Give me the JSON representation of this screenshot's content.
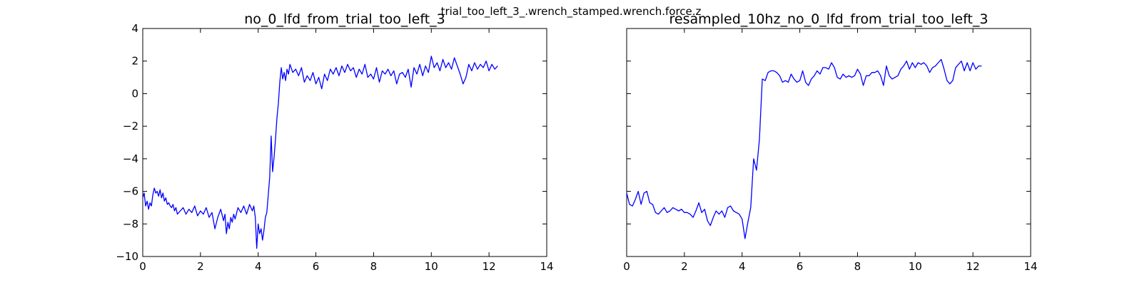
{
  "suptitle": "trial_too_left_3_.wrench_stamped.wrench.force.z",
  "line_color": "#0000ff",
  "chart_data": [
    {
      "type": "line",
      "title": "no_0_lfd_from_trial_too_left_3",
      "xlim": [
        0,
        14
      ],
      "ylim": [
        -10,
        4
      ],
      "xticks": [
        "0",
        "2",
        "4",
        "6",
        "8",
        "10",
        "12",
        "14"
      ],
      "yticks": [
        "4",
        "2",
        "0",
        "−2",
        "−4",
        "−6",
        "−8",
        "−10"
      ],
      "show_yticklabels": true,
      "grid": false,
      "series": [
        {
          "x": [
            0,
            0.05,
            0.1,
            0.15,
            0.2,
            0.25,
            0.3,
            0.35,
            0.4,
            0.45,
            0.5,
            0.55,
            0.6,
            0.65,
            0.7,
            0.75,
            0.8,
            0.85,
            0.9,
            0.95,
            1.0,
            1.05,
            1.1,
            1.15,
            1.2,
            1.3,
            1.4,
            1.5,
            1.6,
            1.7,
            1.8,
            1.9,
            2.0,
            2.1,
            2.2,
            2.3,
            2.4,
            2.5,
            2.6,
            2.7,
            2.8,
            2.85,
            2.9,
            2.95,
            3.0,
            3.05,
            3.1,
            3.15,
            3.2,
            3.3,
            3.4,
            3.5,
            3.6,
            3.7,
            3.8,
            3.85,
            3.9,
            3.95,
            4.0,
            4.05,
            4.1,
            4.15,
            4.2,
            4.25,
            4.3,
            4.35,
            4.4,
            4.45,
            4.5,
            4.55,
            4.6,
            4.65,
            4.7,
            4.75,
            4.8,
            4.85,
            4.9,
            4.95,
            5.0,
            5.05,
            5.1,
            5.2,
            5.3,
            5.4,
            5.5,
            5.6,
            5.7,
            5.8,
            5.9,
            6.0,
            6.1,
            6.2,
            6.3,
            6.4,
            6.5,
            6.6,
            6.7,
            6.8,
            6.9,
            7.0,
            7.1,
            7.2,
            7.3,
            7.4,
            7.5,
            7.6,
            7.7,
            7.8,
            7.9,
            8.0,
            8.1,
            8.2,
            8.3,
            8.4,
            8.5,
            8.6,
            8.7,
            8.8,
            8.9,
            9.0,
            9.1,
            9.2,
            9.3,
            9.4,
            9.5,
            9.6,
            9.7,
            9.8,
            9.9,
            10.0,
            10.1,
            10.2,
            10.3,
            10.4,
            10.5,
            10.6,
            10.7,
            10.8,
            10.9,
            11.0,
            11.1,
            11.2,
            11.3,
            11.4,
            11.5,
            11.6,
            11.7,
            11.8,
            11.9,
            12.0,
            12.1,
            12.2,
            12.3
          ],
          "y": [
            -6.4,
            -6.1,
            -6.9,
            -6.6,
            -7.1,
            -6.7,
            -6.9,
            -6.2,
            -5.8,
            -6.1,
            -6.0,
            -6.3,
            -5.9,
            -6.4,
            -6.1,
            -6.6,
            -6.4,
            -6.8,
            -6.7,
            -6.9,
            -7.0,
            -6.8,
            -7.2,
            -7.0,
            -7.4,
            -7.2,
            -7.0,
            -7.4,
            -7.1,
            -7.3,
            -6.9,
            -7.5,
            -7.2,
            -7.4,
            -7.0,
            -7.6,
            -7.3,
            -8.3,
            -7.6,
            -7.1,
            -7.8,
            -7.4,
            -8.6,
            -7.9,
            -8.3,
            -7.6,
            -7.9,
            -7.4,
            -7.7,
            -7.0,
            -7.3,
            -6.9,
            -7.4,
            -6.8,
            -7.2,
            -6.9,
            -7.6,
            -9.5,
            -8.0,
            -8.6,
            -8.3,
            -9.0,
            -8.4,
            -7.6,
            -7.3,
            -6.2,
            -5.1,
            -2.6,
            -4.8,
            -3.9,
            -2.8,
            -1.5,
            -0.6,
            0.7,
            1.6,
            0.9,
            1.3,
            0.8,
            1.5,
            1.2,
            1.8,
            1.3,
            1.5,
            1.1,
            1.6,
            0.7,
            1.1,
            0.8,
            1.3,
            0.6,
            1.0,
            0.3,
            1.2,
            0.8,
            1.5,
            1.2,
            1.6,
            1.1,
            1.7,
            1.3,
            1.8,
            1.4,
            1.6,
            1.0,
            1.5,
            1.2,
            1.8,
            1.0,
            1.2,
            0.9,
            1.6,
            0.7,
            1.4,
            1.2,
            1.5,
            1.1,
            1.4,
            0.6,
            1.2,
            1.3,
            1.0,
            1.5,
            0.4,
            1.6,
            1.2,
            1.8,
            1.1,
            1.7,
            1.3,
            2.3,
            1.6,
            1.9,
            1.4,
            2.1,
            1.6,
            1.9,
            1.5,
            2.2,
            1.7,
            1.2,
            0.6,
            1.0,
            1.8,
            1.4,
            1.9,
            1.5,
            1.8,
            1.6,
            2.0,
            1.4,
            1.8,
            1.5,
            1.7
          ]
        }
      ]
    },
    {
      "type": "line",
      "title": "resampled_10hz_no_0_lfd_from_trial_too_left_3",
      "xlim": [
        0,
        14
      ],
      "ylim": [
        -10,
        4
      ],
      "xticks": [
        "0",
        "2",
        "4",
        "6",
        "8",
        "10",
        "12",
        "14"
      ],
      "show_yticklabels": false,
      "grid": false,
      "series": [
        {
          "x": [
            0,
            0.1,
            0.2,
            0.3,
            0.4,
            0.5,
            0.6,
            0.7,
            0.8,
            0.9,
            1.0,
            1.1,
            1.2,
            1.3,
            1.4,
            1.5,
            1.6,
            1.7,
            1.8,
            1.9,
            2.0,
            2.1,
            2.2,
            2.3,
            2.4,
            2.5,
            2.6,
            2.7,
            2.8,
            2.9,
            3.0,
            3.1,
            3.2,
            3.3,
            3.4,
            3.5,
            3.6,
            3.7,
            3.8,
            3.9,
            4.0,
            4.1,
            4.2,
            4.3,
            4.4,
            4.5,
            4.6,
            4.7,
            4.8,
            4.9,
            5.0,
            5.1,
            5.2,
            5.3,
            5.4,
            5.5,
            5.6,
            5.7,
            5.8,
            5.9,
            6.0,
            6.1,
            6.2,
            6.3,
            6.4,
            6.5,
            6.6,
            6.7,
            6.8,
            6.9,
            7.0,
            7.1,
            7.2,
            7.3,
            7.4,
            7.5,
            7.6,
            7.7,
            7.8,
            7.9,
            8.0,
            8.1,
            8.2,
            8.3,
            8.4,
            8.5,
            8.6,
            8.7,
            8.8,
            8.9,
            9.0,
            9.1,
            9.2,
            9.3,
            9.4,
            9.5,
            9.6,
            9.7,
            9.8,
            9.9,
            10.0,
            10.1,
            10.2,
            10.3,
            10.4,
            10.5,
            10.6,
            10.7,
            10.8,
            10.9,
            11.0,
            11.1,
            11.2,
            11.3,
            11.4,
            11.5,
            11.6,
            11.7,
            11.8,
            11.9,
            12.0,
            12.1,
            12.2,
            12.3
          ],
          "y": [
            -6.1,
            -6.8,
            -6.9,
            -6.5,
            -6.0,
            -6.8,
            -6.1,
            -6.0,
            -6.7,
            -6.8,
            -7.3,
            -7.4,
            -7.2,
            -7.0,
            -7.3,
            -7.2,
            -7.0,
            -7.1,
            -7.2,
            -7.1,
            -7.3,
            -7.3,
            -7.4,
            -7.6,
            -7.2,
            -6.7,
            -7.3,
            -7.1,
            -7.8,
            -8.1,
            -7.6,
            -7.2,
            -7.4,
            -7.2,
            -7.6,
            -7.0,
            -6.9,
            -7.2,
            -7.3,
            -7.4,
            -7.7,
            -8.9,
            -7.9,
            -7.0,
            -4.0,
            -4.7,
            -2.8,
            0.9,
            0.8,
            1.3,
            1.4,
            1.4,
            1.3,
            1.1,
            0.7,
            0.8,
            0.7,
            1.2,
            0.9,
            0.7,
            0.8,
            1.4,
            0.7,
            0.5,
            0.9,
            1.1,
            1.4,
            1.2,
            1.6,
            1.6,
            1.5,
            1.9,
            1.6,
            1.0,
            0.9,
            1.2,
            1.0,
            1.1,
            1.0,
            1.1,
            1.5,
            1.2,
            0.5,
            1.1,
            1.1,
            1.3,
            1.3,
            1.4,
            1.1,
            0.5,
            1.7,
            1.1,
            0.9,
            1.0,
            1.1,
            1.5,
            1.7,
            2.0,
            1.5,
            1.9,
            1.6,
            1.9,
            1.8,
            1.9,
            1.7,
            1.3,
            1.6,
            1.7,
            1.9,
            2.1,
            1.5,
            0.8,
            0.6,
            0.8,
            1.6,
            1.8,
            2.0,
            1.4,
            1.9,
            1.4,
            1.9,
            1.5,
            1.7,
            1.7
          ]
        }
      ]
    }
  ]
}
